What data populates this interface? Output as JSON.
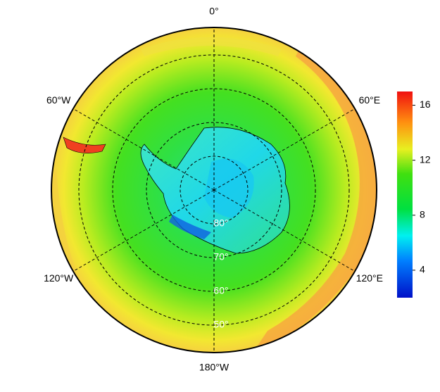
{
  "map": {
    "longitude_labels": [
      "0°",
      "60°E",
      "120°E",
      "180°W",
      "120°W",
      "60°W"
    ],
    "latitude_labels": [
      "80°",
      "70°",
      "60°",
      "50°"
    ]
  },
  "colorbar": {
    "range": [
      2,
      17
    ],
    "ticks": [
      4,
      8,
      12,
      16
    ]
  }
}
